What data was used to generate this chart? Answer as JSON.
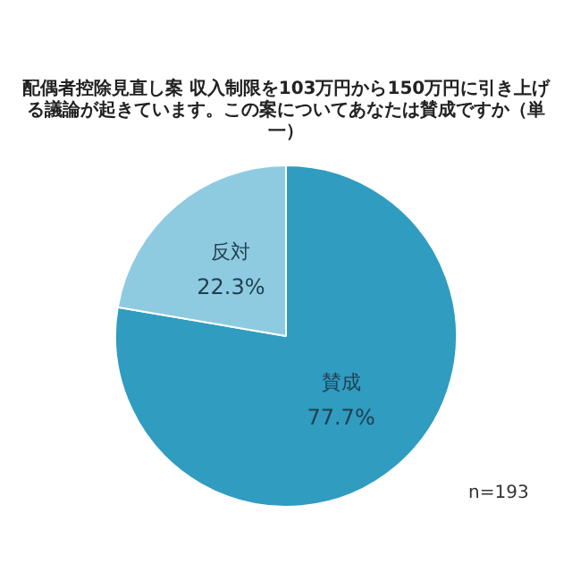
{
  "chart_data": {
    "type": "pie",
    "title": "配偶者控除見直し案 収入制限を103万円から150万円に引き上げる議論が起きています。この案についてあなたは賛成ですか（単一）",
    "categories": [
      "賛成",
      "反対"
    ],
    "values": [
      77.7,
      22.3
    ],
    "colors": [
      "#2f9cc0",
      "#8fcbe0"
    ],
    "value_labels": [
      "77.7%",
      "22.3%"
    ],
    "annotations": [
      "n=193"
    ],
    "legend": false
  }
}
